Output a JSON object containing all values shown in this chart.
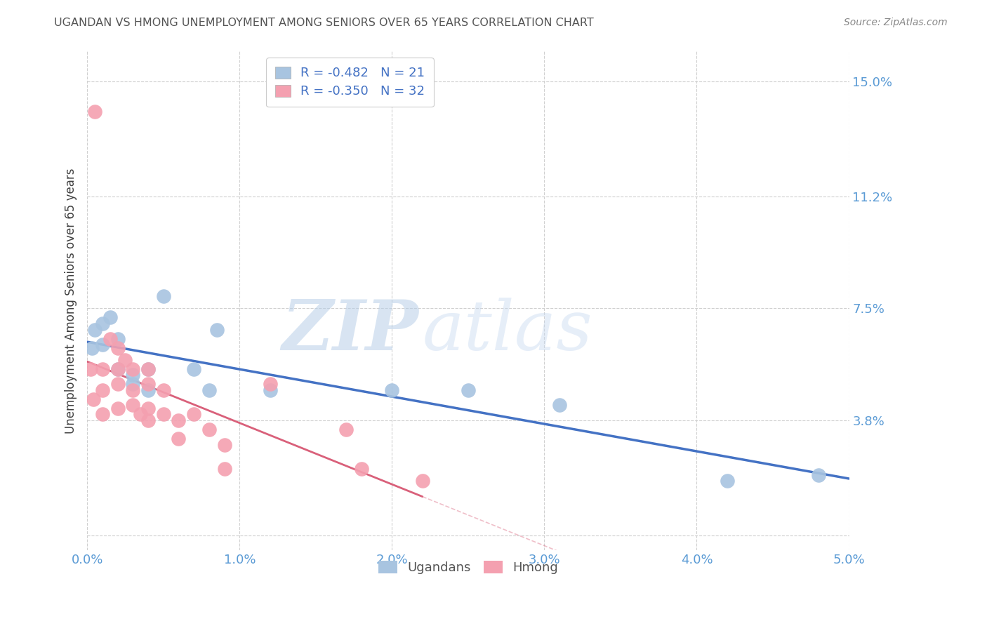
{
  "title": "UGANDAN VS HMONG UNEMPLOYMENT AMONG SENIORS OVER 65 YEARS CORRELATION CHART",
  "source": "Source: ZipAtlas.com",
  "ylabel": "Unemployment Among Seniors over 65 years",
  "xlabel": "",
  "xlim": [
    0.0,
    0.05
  ],
  "ylim": [
    -0.005,
    0.16
  ],
  "xticks": [
    0.0,
    0.01,
    0.02,
    0.03,
    0.04,
    0.05
  ],
  "xtick_labels": [
    "0.0%",
    "1.0%",
    "2.0%",
    "3.0%",
    "4.0%",
    "5.0%"
  ],
  "ytick_values": [
    0.0,
    0.038,
    0.075,
    0.112,
    0.15
  ],
  "ytick_labels": [
    "",
    "3.8%",
    "7.5%",
    "11.2%",
    "15.0%"
  ],
  "ugandan_x": [
    0.0003,
    0.0005,
    0.001,
    0.001,
    0.0015,
    0.002,
    0.002,
    0.003,
    0.003,
    0.004,
    0.004,
    0.005,
    0.007,
    0.008,
    0.0085,
    0.012,
    0.02,
    0.025,
    0.031,
    0.042,
    0.048
  ],
  "ugandan_y": [
    0.062,
    0.068,
    0.063,
    0.07,
    0.072,
    0.055,
    0.065,
    0.05,
    0.053,
    0.055,
    0.048,
    0.079,
    0.055,
    0.048,
    0.068,
    0.048,
    0.048,
    0.048,
    0.043,
    0.018,
    0.02
  ],
  "hmong_x": [
    0.0002,
    0.0004,
    0.0005,
    0.001,
    0.001,
    0.001,
    0.0015,
    0.002,
    0.002,
    0.002,
    0.002,
    0.0025,
    0.003,
    0.003,
    0.003,
    0.0035,
    0.004,
    0.004,
    0.004,
    0.004,
    0.005,
    0.005,
    0.006,
    0.006,
    0.007,
    0.008,
    0.009,
    0.009,
    0.012,
    0.017,
    0.018,
    0.022
  ],
  "hmong_y": [
    0.055,
    0.045,
    0.14,
    0.055,
    0.048,
    0.04,
    0.065,
    0.062,
    0.055,
    0.05,
    0.042,
    0.058,
    0.055,
    0.048,
    0.043,
    0.04,
    0.055,
    0.05,
    0.042,
    0.038,
    0.048,
    0.04,
    0.038,
    0.032,
    0.04,
    0.035,
    0.03,
    0.022,
    0.05,
    0.035,
    0.022,
    0.018
  ],
  "ugandan_color": "#a8c4e0",
  "hmong_color": "#f4a0b0",
  "ugandan_line_color": "#4472c4",
  "hmong_line_color": "#d9607a",
  "ugandan_R": -0.482,
  "ugandan_N": 21,
  "hmong_R": -0.35,
  "hmong_N": 32,
  "watermark_zip": "ZIP",
  "watermark_atlas": "atlas",
  "background_color": "#ffffff",
  "grid_color": "#d0d0d0",
  "axis_label_color": "#5b9bd5",
  "title_color": "#555555",
  "source_color": "#888888",
  "legend_label_color": "#4472c4"
}
